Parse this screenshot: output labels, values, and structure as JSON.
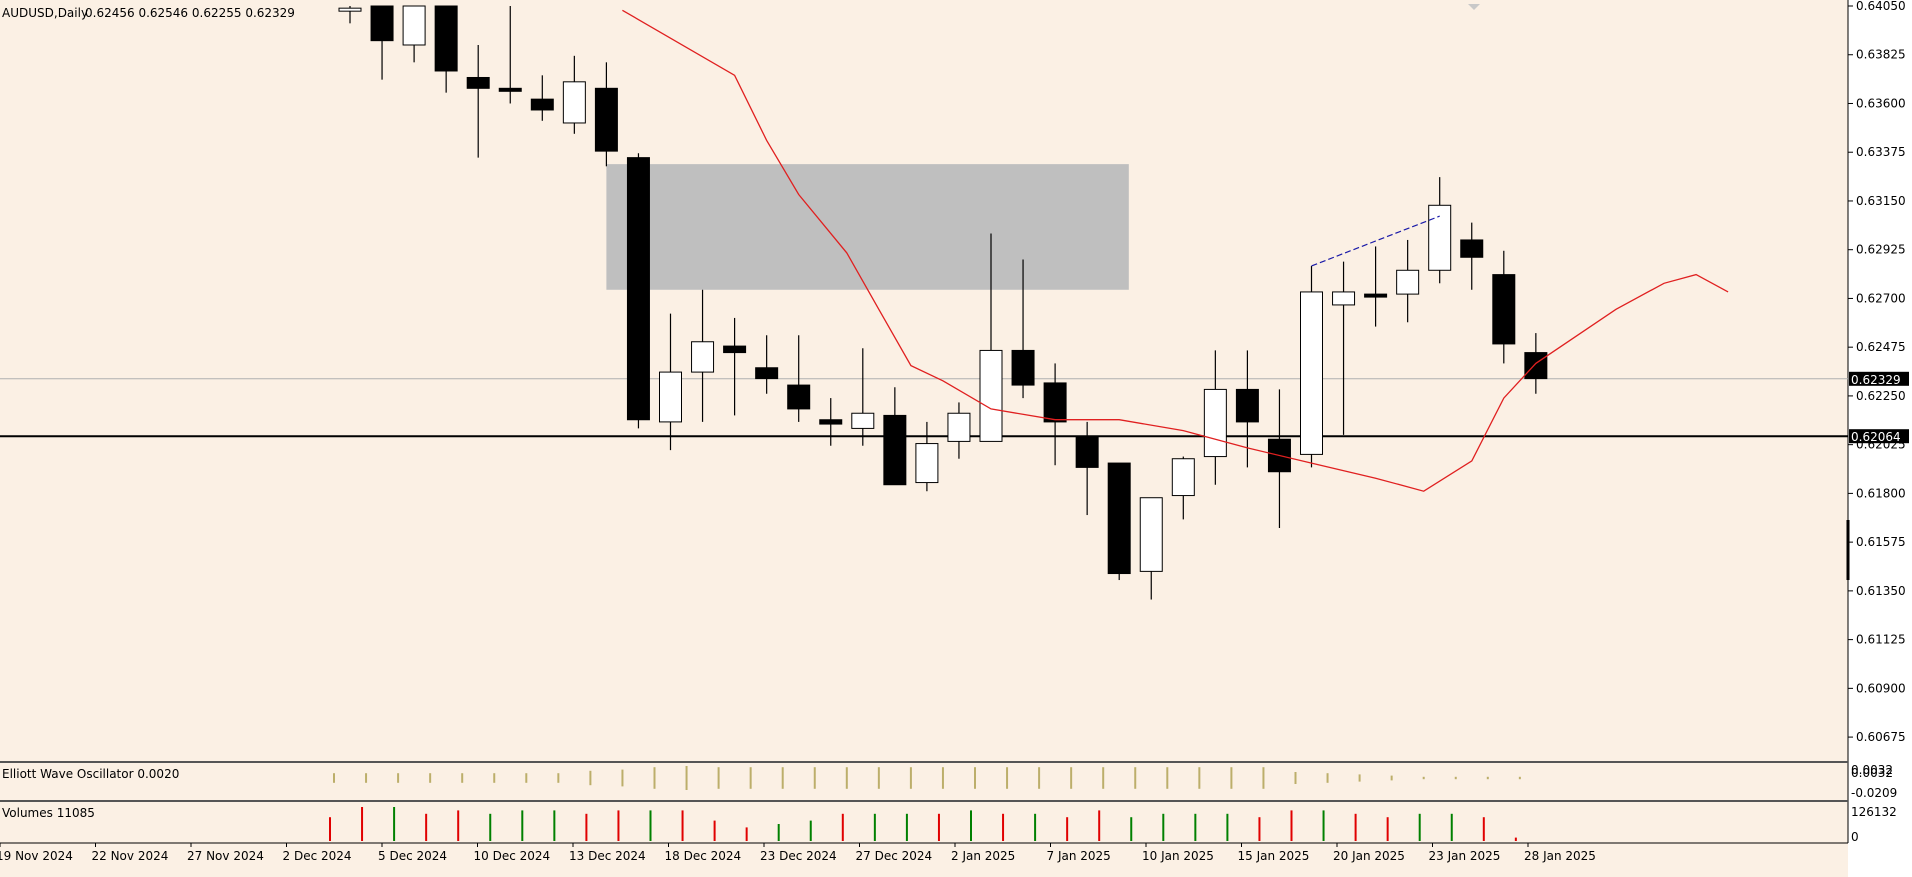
{
  "header": {
    "symbol": "AUDUSD,Daily",
    "ohlc": "0.62456 0.62546 0.62255 0.62329"
  },
  "indicators": {
    "oscillator_label": "Elliott Wave Oscillator 0.0020",
    "oscillator_ticks": [
      "0.0032",
      "0.0032",
      "-0.0209"
    ],
    "volumes_label": "Volumes 11085",
    "volume_ticks": [
      "126132",
      "0"
    ]
  },
  "colors": {
    "background": "#fbf0e4",
    "bull_body": "#ffffff",
    "bear_body": "#000000",
    "moving_average": "#e02020",
    "supply_zone": "#bfbfbf",
    "trend_line": "#1a1aa8",
    "volume_up": "#008000",
    "volume_down": "#e00000",
    "oscillator_bar": "#bcae6a"
  },
  "chart_data": {
    "type": "candlestick",
    "title": "AUDUSD,Daily",
    "ylim": [
      0.6056,
      0.6405
    ],
    "price_ticks": [
      "0.64050",
      "0.63825",
      "0.63600",
      "0.63375",
      "0.63150",
      "0.62925",
      "0.62700",
      "0.62475",
      "0.62250",
      "0.62025",
      "0.61800",
      "0.61575",
      "0.61350",
      "0.61125",
      "0.60900",
      "0.60675"
    ],
    "x_labels": [
      "19 Nov 2024",
      "22 Nov 2024",
      "27 Nov 2024",
      "2 Dec 2024",
      "5 Dec 2024",
      "10 Dec 2024",
      "13 Dec 2024",
      "18 Dec 2024",
      "23 Dec 2024",
      "27 Dec 2024",
      "2 Jan 2025",
      "7 Jan 2025",
      "10 Jan 2025",
      "15 Jan 2025",
      "20 Jan 2025",
      "23 Jan 2025",
      "28 Jan 2025"
    ],
    "candles": [
      {
        "o": 0.6403,
        "h": 0.6405,
        "l": 0.6397,
        "c": 0.6404
      },
      {
        "o": 0.6405,
        "h": 0.6405,
        "l": 0.6371,
        "c": 0.6389
      },
      {
        "o": 0.6387,
        "h": 0.6405,
        "l": 0.6379,
        "c": 0.6405
      },
      {
        "o": 0.6405,
        "h": 0.6405,
        "l": 0.6365,
        "c": 0.6375
      },
      {
        "o": 0.6372,
        "h": 0.6387,
        "l": 0.6335,
        "c": 0.6367
      },
      {
        "o": 0.6367,
        "h": 0.6405,
        "l": 0.636,
        "c": 0.6366
      },
      {
        "o": 0.6362,
        "h": 0.6373,
        "l": 0.6352,
        "c": 0.6357
      },
      {
        "o": 0.6351,
        "h": 0.6382,
        "l": 0.6346,
        "c": 0.637
      },
      {
        "o": 0.6367,
        "h": 0.6379,
        "l": 0.6331,
        "c": 0.6338
      },
      {
        "o": 0.6335,
        "h": 0.6337,
        "l": 0.621,
        "c": 0.6214
      },
      {
        "o": 0.6213,
        "h": 0.6263,
        "l": 0.62,
        "c": 0.6236
      },
      {
        "o": 0.6236,
        "h": 0.6274,
        "l": 0.6213,
        "c": 0.625
      },
      {
        "o": 0.6248,
        "h": 0.6261,
        "l": 0.6216,
        "c": 0.6245
      },
      {
        "o": 0.6238,
        "h": 0.6253,
        "l": 0.6226,
        "c": 0.6233
      },
      {
        "o": 0.623,
        "h": 0.6253,
        "l": 0.6213,
        "c": 0.6219
      },
      {
        "o": 0.6214,
        "h": 0.6224,
        "l": 0.6202,
        "c": 0.6212
      },
      {
        "o": 0.621,
        "h": 0.6247,
        "l": 0.6202,
        "c": 0.6217
      },
      {
        "o": 0.6216,
        "h": 0.6229,
        "l": 0.6184,
        "c": 0.6184
      },
      {
        "o": 0.6185,
        "h": 0.6213,
        "l": 0.6181,
        "c": 0.6203
      },
      {
        "o": 0.6204,
        "h": 0.6222,
        "l": 0.6196,
        "c": 0.6217
      },
      {
        "o": 0.6204,
        "h": 0.63,
        "l": 0.6204,
        "c": 0.6246
      },
      {
        "o": 0.6246,
        "h": 0.6288,
        "l": 0.6224,
        "c": 0.623
      },
      {
        "o": 0.6231,
        "h": 0.624,
        "l": 0.6193,
        "c": 0.6213
      },
      {
        "o": 0.6206,
        "h": 0.6213,
        "l": 0.617,
        "c": 0.6192
      },
      {
        "o": 0.6194,
        "h": 0.6194,
        "l": 0.614,
        "c": 0.6143
      },
      {
        "o": 0.6144,
        "h": 0.6178,
        "l": 0.6131,
        "c": 0.6178
      },
      {
        "o": 0.6179,
        "h": 0.6197,
        "l": 0.6168,
        "c": 0.6196
      },
      {
        "o": 0.6197,
        "h": 0.6246,
        "l": 0.6184,
        "c": 0.6228
      },
      {
        "o": 0.6228,
        "h": 0.6246,
        "l": 0.6192,
        "c": 0.6213
      },
      {
        "o": 0.6205,
        "h": 0.6228,
        "l": 0.6164,
        "c": 0.619
      },
      {
        "o": 0.6198,
        "h": 0.6285,
        "l": 0.6192,
        "c": 0.6273
      },
      {
        "o": 0.6267,
        "h": 0.6287,
        "l": 0.6207,
        "c": 0.6273
      },
      {
        "o": 0.6272,
        "h": 0.6294,
        "l": 0.6257,
        "c": 0.6271
      },
      {
        "o": 0.6272,
        "h": 0.6297,
        "l": 0.6259,
        "c": 0.6283
      },
      {
        "o": 0.6283,
        "h": 0.6326,
        "l": 0.6277,
        "c": 0.6313
      },
      {
        "o": 0.6297,
        "h": 0.6305,
        "l": 0.6274,
        "c": 0.6289
      },
      {
        "o": 0.6281,
        "h": 0.6292,
        "l": 0.624,
        "c": 0.6249
      },
      {
        "o": 0.6245,
        "h": 0.6254,
        "l": 0.6226,
        "c": 0.6233
      }
    ],
    "moving_average": [
      {
        "i": 8.5,
        "v": 0.6403
      },
      {
        "i": 12.0,
        "v": 0.6373
      },
      {
        "i": 13.0,
        "v": 0.6343
      },
      {
        "i": 14.0,
        "v": 0.6318
      },
      {
        "i": 15.5,
        "v": 0.6291
      },
      {
        "i": 16.5,
        "v": 0.6265
      },
      {
        "i": 17.5,
        "v": 0.6239
      },
      {
        "i": 18.5,
        "v": 0.6232
      },
      {
        "i": 20.0,
        "v": 0.6219
      },
      {
        "i": 22.0,
        "v": 0.6214
      },
      {
        "i": 24.0,
        "v": 0.6214
      },
      {
        "i": 26.0,
        "v": 0.6209
      },
      {
        "i": 28.0,
        "v": 0.6201
      },
      {
        "i": 30.0,
        "v": 0.6194
      },
      {
        "i": 32.0,
        "v": 0.6187
      },
      {
        "i": 33.5,
        "v": 0.6181
      },
      {
        "i": 35.0,
        "v": 0.6195
      },
      {
        "i": 36.0,
        "v": 0.6224
      },
      {
        "i": 37.0,
        "v": 0.624
      },
      {
        "i": 39.5,
        "v": 0.6265
      },
      {
        "i": 41.0,
        "v": 0.6277
      },
      {
        "i": 42.0,
        "v": 0.6281
      },
      {
        "i": 43.0,
        "v": 0.6273
      }
    ],
    "supply_zone": {
      "from_index": 8.0,
      "to_index": 24.3,
      "low": 0.6274,
      "high": 0.6332
    },
    "trend_line": {
      "from": {
        "i": 30.0,
        "v": 0.6285
      },
      "to": {
        "i": 34.0,
        "v": 0.6308
      }
    },
    "levels": [
      {
        "price": 0.62064,
        "label": "0.62064",
        "style": "solid"
      },
      {
        "price": 0.62329,
        "label": "0.62329",
        "style": "thin"
      }
    ],
    "oscillator": [
      0.4,
      0.4,
      0.4,
      0.4,
      0.4,
      0.4,
      0.4,
      0.4,
      0.6,
      0.7,
      0.9,
      1.0,
      0.9,
      0.9,
      0.9,
      0.9,
      0.9,
      0.9,
      0.9,
      0.9,
      0.9,
      0.9,
      0.9,
      0.9,
      0.9,
      0.9,
      0.9,
      0.9,
      0.9,
      0.9,
      0.5,
      0.4,
      0.3,
      0.2,
      0.1,
      0.1,
      0.1,
      0.1
    ],
    "volumes": [
      {
        "v": 0.7,
        "up": false
      },
      {
        "v": 1.0,
        "up": false
      },
      {
        "v": 1.0,
        "up": true
      },
      {
        "v": 0.8,
        "up": false
      },
      {
        "v": 0.9,
        "up": false
      },
      {
        "v": 0.8,
        "up": true
      },
      {
        "v": 0.9,
        "up": true
      },
      {
        "v": 0.9,
        "up": true
      },
      {
        "v": 0.8,
        "up": false
      },
      {
        "v": 0.9,
        "up": false
      },
      {
        "v": 0.9,
        "up": true
      },
      {
        "v": 0.9,
        "up": false
      },
      {
        "v": 0.6,
        "up": false
      },
      {
        "v": 0.4,
        "up": false
      },
      {
        "v": 0.5,
        "up": true
      },
      {
        "v": 0.6,
        "up": true
      },
      {
        "v": 0.8,
        "up": false
      },
      {
        "v": 0.8,
        "up": true
      },
      {
        "v": 0.8,
        "up": true
      },
      {
        "v": 0.8,
        "up": false
      },
      {
        "v": 0.9,
        "up": true
      },
      {
        "v": 0.8,
        "up": false
      },
      {
        "v": 0.8,
        "up": true
      },
      {
        "v": 0.7,
        "up": false
      },
      {
        "v": 0.9,
        "up": false
      },
      {
        "v": 0.7,
        "up": true
      },
      {
        "v": 0.8,
        "up": true
      },
      {
        "v": 0.8,
        "up": true
      },
      {
        "v": 0.8,
        "up": true
      },
      {
        "v": 0.7,
        "up": false
      },
      {
        "v": 0.9,
        "up": false
      },
      {
        "v": 0.9,
        "up": true
      },
      {
        "v": 0.8,
        "up": false
      },
      {
        "v": 0.7,
        "up": false
      },
      {
        "v": 0.8,
        "up": true
      },
      {
        "v": 0.8,
        "up": true
      },
      {
        "v": 0.7,
        "up": false
      },
      {
        "v": 0.1,
        "up": false
      }
    ]
  }
}
